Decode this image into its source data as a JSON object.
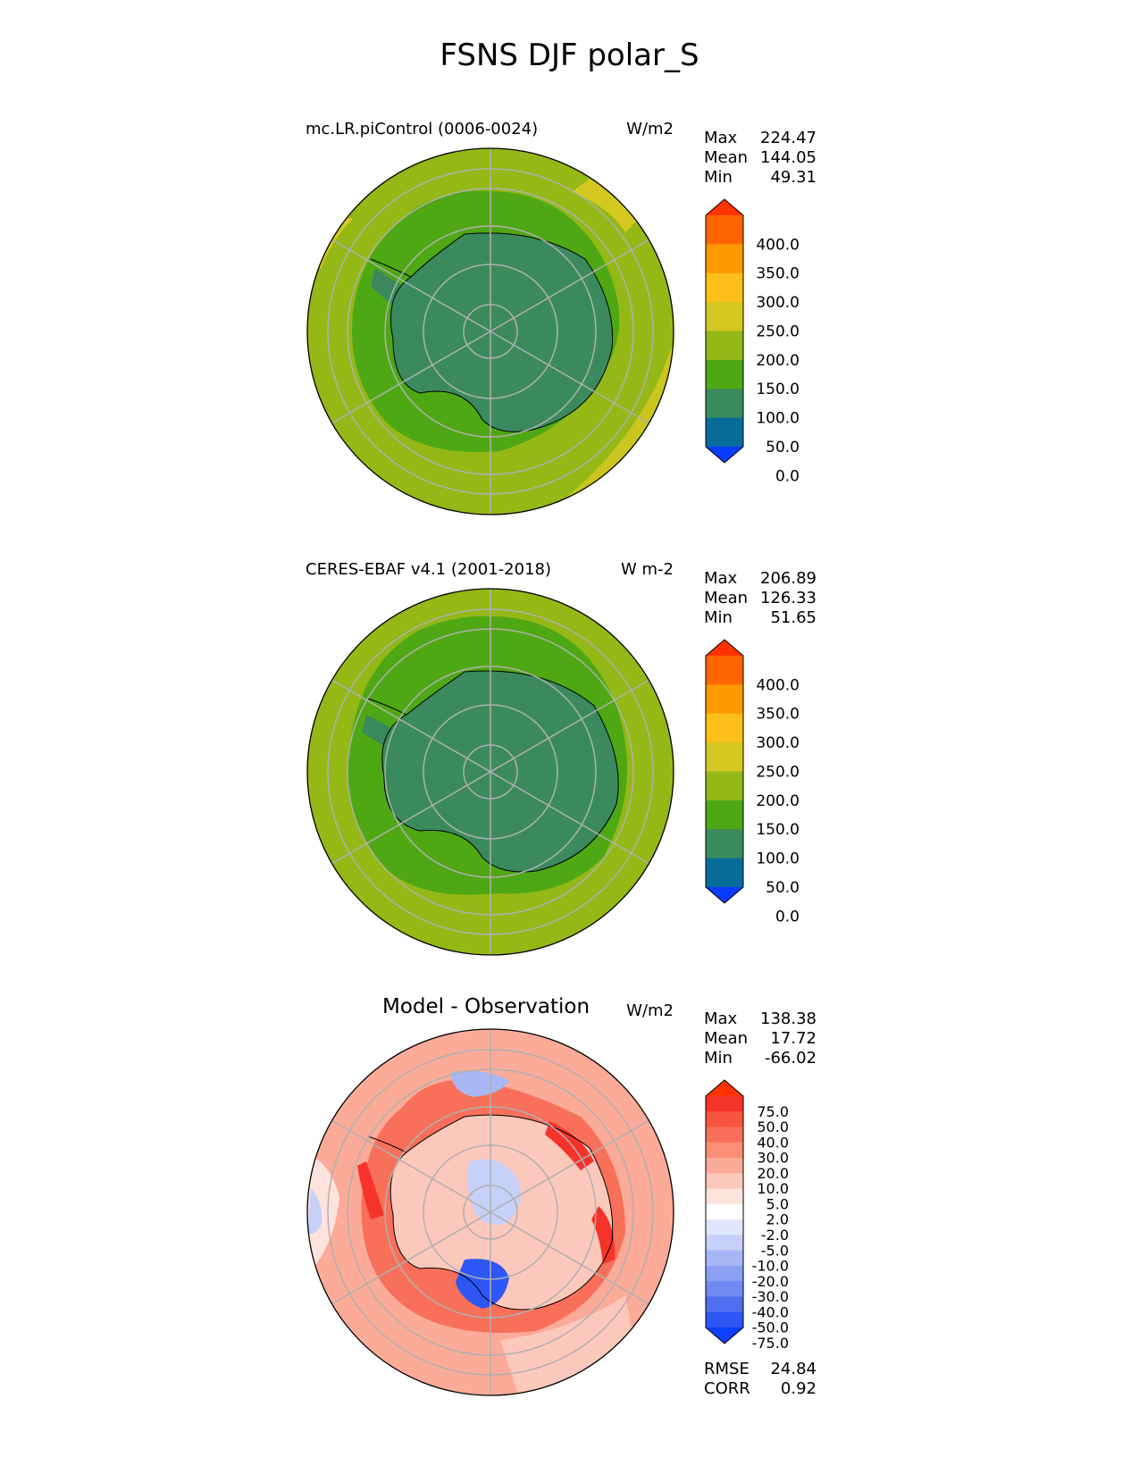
{
  "title": "FSNS DJF polar_S",
  "panels": [
    {
      "name": "test",
      "title": "mc.LR.piControl (0006-0024)",
      "units": "W/m2",
      "stats": [
        {
          "label": "Max",
          "value": "224.47"
        },
        {
          "label": "Mean",
          "value": "144.05"
        },
        {
          "label": "Min",
          "value": "49.31"
        }
      ]
    },
    {
      "name": "reference",
      "title": "CERES-EBAF v4.1 (2001-2018)",
      "units": "W m-2",
      "stats": [
        {
          "label": "Max",
          "value": "206.89"
        },
        {
          "label": "Mean",
          "value": "126.33"
        },
        {
          "label": "Min",
          "value": "51.65"
        }
      ]
    },
    {
      "name": "difference",
      "title": "Model - Observation",
      "units": "W/m2",
      "stats": [
        {
          "label": "Max",
          "value": "138.38"
        },
        {
          "label": "Mean",
          "value": "17.72"
        },
        {
          "label": "Min",
          "value": "-66.02"
        }
      ],
      "metrics": [
        {
          "label": "RMSE",
          "value": "24.84"
        },
        {
          "label": "CORR",
          "value": "0.92"
        }
      ]
    }
  ],
  "colorbar_main": {
    "ticks": [
      "400.0",
      "350.0",
      "300.0",
      "250.0",
      "200.0",
      "150.0",
      "100.0",
      "50.0",
      "0.0"
    ],
    "colors": [
      "#ff3300",
      "#ff6600",
      "#ff9900",
      "#ffbf1a",
      "#d4c820",
      "#94b816",
      "#4ea813",
      "#3a8a5e",
      "#086c9a",
      "#0a3cff"
    ]
  },
  "colorbar_diff": {
    "ticks": [
      "75.0",
      "50.0",
      "40.0",
      "30.0",
      "20.0",
      "10.0",
      "5.0",
      "2.0",
      "-2.0",
      "-5.0",
      "-10.0",
      "-20.0",
      "-30.0",
      "-40.0",
      "-50.0",
      "-75.0"
    ],
    "colors": [
      "#ff3300",
      "#f6332a",
      "#f7553f",
      "#f8705a",
      "#fa8f78",
      "#fbab98",
      "#fdc8bc",
      "#fee2dc",
      "#ffffff",
      "#e0e6fb",
      "#c6d0f8",
      "#a8b7f5",
      "#8aa0f2",
      "#6f8af0",
      "#4d6ff0",
      "#2d56f5",
      "#0f40ff"
    ]
  }
}
